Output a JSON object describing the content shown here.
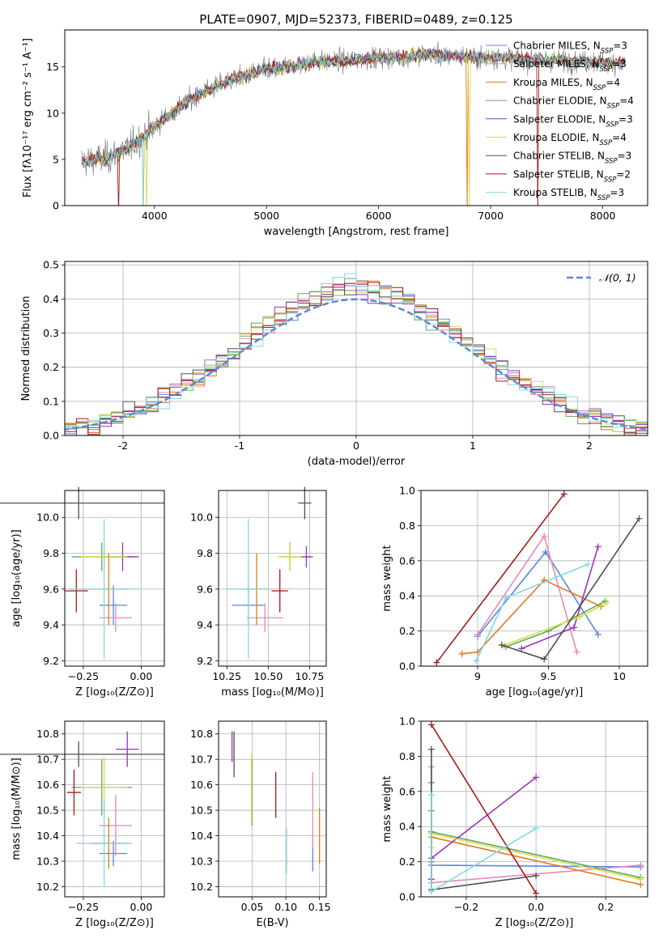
{
  "figure_title": "PLATE=0907, MJD=52373, FIBERID=0489, z=0.125",
  "colors": {
    "chabrier_miles": "#5a86e0",
    "salpeter_miles": "#e889b8",
    "kroupa_miles": "#e07a1f",
    "chabrier_elodie": "#5fa860",
    "salpeter_elodie": "#9a35b8",
    "kroupa_elodie": "#d5dd4a",
    "chabrier_stelib": "#505050",
    "salpeter_stelib": "#a81a1a",
    "kroupa_stelib": "#7edae0",
    "normal_curve": "#5a8ad8",
    "grid": "#b0b0b0",
    "data_spectrum": "#707070"
  },
  "chart_data": [
    {
      "type": "line",
      "id": "spectrum",
      "xlabel": "wavelength [Angstrom, rest frame]",
      "ylabel": "Flux [fλ10⁻¹⁷ erg cm⁻² s⁻¹ A⁻¹]",
      "xlim": [
        3200,
        8400
      ],
      "ylim": [
        0,
        19
      ],
      "xticks": [
        4000,
        5000,
        6000,
        7000,
        8000
      ],
      "yticks": [
        0,
        5,
        10,
        15
      ],
      "grid": false,
      "legend_placement": "right",
      "series": [
        {
          "name": "Chabrier MILES, N_SSP=3",
          "key": "chabrier_miles"
        },
        {
          "name": "Salpeter MILES, N_SSP=3",
          "key": "salpeter_miles"
        },
        {
          "name": "Kroupa MILES, N_SSP=4",
          "key": "kroupa_miles"
        },
        {
          "name": "Chabrier ELODIE, N_SSP=4",
          "key": "chabrier_elodie"
        },
        {
          "name": "Salpeter ELODIE, N_SSP=3",
          "key": "salpeter_elodie"
        },
        {
          "name": "Kroupa ELODIE, N_SSP=4",
          "key": "kroupa_elodie"
        },
        {
          "name": "Chabrier STELIB, N_SSP=3",
          "key": "chabrier_stelib"
        },
        {
          "name": "Salpeter STELIB, N_SSP=2",
          "key": "salpeter_stelib"
        },
        {
          "name": "Kroupa STELIB, N_SSP=3",
          "key": "kroupa_stelib"
        }
      ],
      "continuum": {
        "x": [
          3350,
          3600,
          3800,
          4000,
          4200,
          4400,
          4600,
          4800,
          5000,
          5200,
          5400,
          5600,
          5800,
          6000,
          6200,
          6400,
          6600,
          6800,
          7000,
          7200,
          7400,
          7600,
          7800,
          8000,
          8200
        ],
        "y": [
          4.8,
          5.2,
          6.5,
          8.5,
          10.5,
          12.0,
          13.2,
          14.0,
          14.8,
          15.0,
          15.6,
          15.6,
          15.8,
          16.0,
          16.0,
          16.4,
          16.2,
          16.1,
          16.0,
          15.9,
          15.8,
          15.7,
          15.6,
          15.5,
          15.4
        ]
      }
    },
    {
      "type": "line",
      "id": "residuals",
      "xlabel": "(data-model)/error",
      "ylabel": "Normed distribution",
      "xlim": [
        -2.5,
        2.5
      ],
      "ylim": [
        0,
        0.51
      ],
      "xticks": [
        -2,
        -1,
        0,
        1,
        2
      ],
      "yticks": [
        0.0,
        0.1,
        0.2,
        0.3,
        0.4,
        0.5
      ],
      "grid": true,
      "legend_placement": "upper right",
      "legend": [
        "𝒩(0, 1)"
      ],
      "normal_curve": {
        "mean": 0,
        "sigma": 1
      }
    },
    {
      "type": "scatter",
      "id": "age-vs-Z",
      "xlabel": "Z [log₁₀(Z/Z⊙)]",
      "ylabel": "age  [log₁₀(age/yr)]",
      "xlim": [
        -0.33,
        0.1
      ],
      "ylim": [
        9.17,
        10.15
      ],
      "xticks": [
        -0.25,
        0.0
      ],
      "xticklabels": [
        "−0.25",
        "0.00"
      ],
      "yticks": [
        9.2,
        9.4,
        9.6,
        9.8,
        10.0
      ],
      "grid": true,
      "points": [
        {
          "key": "chabrier_miles",
          "x": -0.12,
          "y": 9.51,
          "xerr": 0.06,
          "yerr": 0.11
        },
        {
          "key": "salpeter_miles",
          "x": -0.11,
          "y": 9.44,
          "xerr": 0.07,
          "yerr": 0.08
        },
        {
          "key": "kroupa_miles",
          "x": -0.14,
          "y": 9.6,
          "xerr": 0.08,
          "yerr": 0.2
        },
        {
          "key": "chabrier_elodie",
          "x": -0.17,
          "y": 9.78,
          "xerr": 0.13,
          "yerr": 0.08
        },
        {
          "key": "salpeter_elodie",
          "x": -0.08,
          "y": 9.78,
          "xerr": 0.07,
          "yerr": 0.08
        },
        {
          "key": "kroupa_elodie",
          "x": -0.16,
          "y": 9.78,
          "xerr": 0.1,
          "yerr": 0.08
        },
        {
          "key": "chabrier_stelib",
          "x": -0.27,
          "y": 10.08,
          "xerr": 0.37,
          "yerr": 0.09
        },
        {
          "key": "salpeter_stelib",
          "x": -0.28,
          "y": 9.59,
          "xerr": 0.05,
          "yerr": 0.12
        },
        {
          "key": "kroupa_stelib",
          "x": -0.16,
          "y": 9.6,
          "xerr": 0.15,
          "yerr": 0.39
        }
      ]
    },
    {
      "type": "scatter",
      "id": "age-vs-mass",
      "xlabel": "mass [log₁₀(M/M⊙)]",
      "ylabel": "",
      "xlim": [
        10.2,
        10.85
      ],
      "ylim": [
        9.17,
        10.15
      ],
      "xticks": [
        10.25,
        10.5,
        10.75
      ],
      "xticklabels": [
        "10.25",
        "10.50",
        "10.75"
      ],
      "yticks": [
        9.2,
        9.4,
        9.6,
        9.8,
        10.0
      ],
      "grid": true,
      "points": [
        {
          "key": "chabrier_miles",
          "x": 10.38,
          "y": 9.51,
          "xerr": 0.1,
          "yerr": 0.11
        },
        {
          "key": "salpeter_miles",
          "x": 10.48,
          "y": 9.44,
          "xerr": 0.11,
          "yerr": 0.08
        },
        {
          "key": "kroupa_miles",
          "x": 10.43,
          "y": 9.6,
          "xerr": 0.08,
          "yerr": 0.2
        },
        {
          "key": "chabrier_elodie",
          "x": 10.63,
          "y": 9.78,
          "xerr": 0.05,
          "yerr": 0.08
        },
        {
          "key": "salpeter_elodie",
          "x": 10.73,
          "y": 9.78,
          "xerr": 0.04,
          "yerr": 0.06
        },
        {
          "key": "kroupa_elodie",
          "x": 10.63,
          "y": 9.78,
          "xerr": 0.07,
          "yerr": 0.08
        },
        {
          "key": "chabrier_stelib",
          "x": 10.72,
          "y": 10.08,
          "xerr": 0.04,
          "yerr": 0.09
        },
        {
          "key": "salpeter_stelib",
          "x": 10.57,
          "y": 9.59,
          "xerr": 0.05,
          "yerr": 0.12
        },
        {
          "key": "kroupa_stelib",
          "x": 10.38,
          "y": 9.6,
          "xerr": 0.13,
          "yerr": 0.39
        }
      ]
    },
    {
      "type": "line",
      "id": "weight-vs-age",
      "xlabel": "age  [log₁₀(age/yr)]",
      "ylabel": "mass weight",
      "xlim": [
        8.6,
        10.2
      ],
      "ylim": [
        0,
        1
      ],
      "xticks": [
        9.0,
        9.5,
        10.0
      ],
      "yticks": [
        0.0,
        0.2,
        0.4,
        0.6,
        0.8,
        1.0
      ],
      "grid": true,
      "series": [
        {
          "key": "chabrier_miles",
          "x": [
            9.0,
            9.48,
            9.85
          ],
          "y": [
            0.17,
            0.65,
            0.18
          ]
        },
        {
          "key": "salpeter_miles",
          "x": [
            9.0,
            9.47,
            9.7
          ],
          "y": [
            0.18,
            0.74,
            0.08
          ]
        },
        {
          "key": "kroupa_miles",
          "x": [
            8.89,
            9.0,
            9.47,
            9.87
          ],
          "y": [
            0.07,
            0.08,
            0.49,
            0.34
          ]
        },
        {
          "key": "chabrier_elodie",
          "x": [
            9.2,
            9.5,
            9.9
          ],
          "y": [
            0.11,
            0.2,
            0.37
          ]
        },
        {
          "key": "salpeter_elodie",
          "x": [
            9.31,
            9.68,
            9.85
          ],
          "y": [
            0.1,
            0.22,
            0.68
          ]
        },
        {
          "key": "kroupa_elodie",
          "x": [
            9.19,
            9.72,
            9.91
          ],
          "y": [
            0.12,
            0.28,
            0.36
          ]
        },
        {
          "key": "chabrier_stelib",
          "x": [
            9.17,
            9.47,
            10.14
          ],
          "y": [
            0.12,
            0.04,
            0.84
          ]
        },
        {
          "key": "salpeter_stelib",
          "x": [
            8.71,
            9.61
          ],
          "y": [
            0.02,
            0.98
          ]
        },
        {
          "key": "kroupa_stelib",
          "x": [
            8.99,
            9.2,
            9.78
          ],
          "y": [
            0.03,
            0.39,
            0.58
          ]
        }
      ]
    },
    {
      "type": "scatter",
      "id": "mass-vs-Z",
      "xlabel": "Z [log₁₀(Z/Z⊙)]",
      "ylabel": "mass [log₁₀(M/M⊙)]",
      "xlim": [
        -0.33,
        0.1
      ],
      "ylim": [
        10.16,
        10.85
      ],
      "xticks": [
        -0.25,
        0.0
      ],
      "xticklabels": [
        "−0.25",
        "0.00"
      ],
      "yticks": [
        10.2,
        10.3,
        10.4,
        10.5,
        10.6,
        10.7,
        10.8
      ],
      "grid": true,
      "points": [
        {
          "key": "chabrier_miles",
          "x": -0.12,
          "y": 10.33,
          "xerr": 0.06,
          "yerr": 0.05
        },
        {
          "key": "salpeter_miles",
          "x": -0.11,
          "y": 10.44,
          "xerr": 0.07,
          "yerr": 0.12
        },
        {
          "key": "kroupa_miles",
          "x": -0.14,
          "y": 10.37,
          "xerr": 0.08,
          "yerr": 0.1
        },
        {
          "key": "chabrier_elodie",
          "x": -0.17,
          "y": 10.59,
          "xerr": 0.13,
          "yerr": 0.11
        },
        {
          "key": "salpeter_elodie",
          "x": -0.06,
          "y": 10.74,
          "xerr": 0.05,
          "yerr": 0.07
        },
        {
          "key": "kroupa_elodie",
          "x": -0.16,
          "y": 10.59,
          "xerr": 0.1,
          "yerr": 0.12
        },
        {
          "key": "chabrier_stelib",
          "x": -0.27,
          "y": 10.72,
          "xerr": 0.37,
          "yerr": 0.05
        },
        {
          "key": "salpeter_stelib",
          "x": -0.29,
          "y": 10.57,
          "xerr": 0.03,
          "yerr": 0.09
        },
        {
          "key": "kroupa_stelib",
          "x": -0.16,
          "y": 10.37,
          "xerr": 0.12,
          "yerr": 0.17
        }
      ]
    },
    {
      "type": "scatter",
      "id": "mass-vs-ebv",
      "xlabel": "E(B-V)",
      "ylabel": "",
      "xlim": [
        0.0,
        0.16
      ],
      "ylim": [
        10.16,
        10.85
      ],
      "xticks": [
        0.05,
        0.1,
        0.15
      ],
      "xticklabels": [
        "0.05",
        "0.10",
        "0.15"
      ],
      "yticks": [
        10.2,
        10.3,
        10.4,
        10.5,
        10.6,
        10.7,
        10.8
      ],
      "grid": true,
      "points": [
        {
          "key": "chabrier_miles",
          "x": 0.14,
          "y": 10.33,
          "xerr": 0.0,
          "yerr": 0.07
        },
        {
          "key": "salpeter_miles",
          "x": 0.14,
          "y": 10.5,
          "xerr": 0.0,
          "yerr": 0.15
        },
        {
          "key": "kroupa_miles",
          "x": 0.15,
          "y": 10.4,
          "xerr": 0.0,
          "yerr": 0.11
        },
        {
          "key": "chabrier_elodie",
          "x": 0.05,
          "y": 10.57,
          "xerr": 0.0,
          "yerr": 0.13
        },
        {
          "key": "salpeter_elodie",
          "x": 0.02,
          "y": 10.75,
          "xerr": 0.0,
          "yerr": 0.06
        },
        {
          "key": "kroupa_elodie",
          "x": 0.049,
          "y": 10.58,
          "xerr": 0.0,
          "yerr": 0.14
        },
        {
          "key": "chabrier_stelib",
          "x": 0.023,
          "y": 10.72,
          "xerr": 0.0,
          "yerr": 0.09
        },
        {
          "key": "salpeter_stelib",
          "x": 0.085,
          "y": 10.56,
          "xerr": 0.0,
          "yerr": 0.09
        },
        {
          "key": "kroupa_stelib",
          "x": 0.101,
          "y": 10.34,
          "xerr": 0.0,
          "yerr": 0.09
        }
      ]
    },
    {
      "type": "line",
      "id": "weight-vs-Z",
      "xlabel": "Z [log₁₀(Z/Z⊙)]",
      "ylabel": "mass weight",
      "xlim": [
        -0.33,
        0.32
      ],
      "ylim": [
        0,
        1
      ],
      "xticks": [
        -0.2,
        0.0,
        0.2
      ],
      "xticklabels": [
        "−0.2",
        "0.0",
        "0.2"
      ],
      "yticks": [
        0.0,
        0.2,
        0.4,
        0.6,
        0.8,
        1.0
      ],
      "grid": true,
      "series": [
        {
          "key": "chabrier_miles",
          "x": [
            -0.3,
            -0.3,
            0.3
          ],
          "y": [
            0.65,
            0.18,
            0.17
          ]
        },
        {
          "key": "salpeter_miles",
          "x": [
            -0.3,
            -0.3,
            0.3
          ],
          "y": [
            0.74,
            0.08,
            0.18
          ]
        },
        {
          "key": "kroupa_miles",
          "x": [
            -0.3,
            -0.3,
            0.3
          ],
          "y": [
            0.49,
            0.34,
            0.07
          ]
        },
        {
          "key": "chabrier_elodie",
          "x": [
            -0.3,
            -0.3,
            0.3
          ],
          "y": [
            0.2,
            0.37,
            0.11
          ]
        },
        {
          "key": "salpeter_elodie",
          "x": [
            -0.3,
            -0.3,
            0.0
          ],
          "y": [
            0.1,
            0.22,
            0.68
          ]
        },
        {
          "key": "kroupa_elodie",
          "x": [
            -0.3,
            -0.3,
            0.3
          ],
          "y": [
            0.28,
            0.36,
            0.1
          ]
        },
        {
          "key": "chabrier_stelib",
          "x": [
            -0.3,
            -0.3,
            0.0
          ],
          "y": [
            0.84,
            0.04,
            0.12
          ]
        },
        {
          "key": "salpeter_stelib",
          "x": [
            -0.3,
            0.0
          ],
          "y": [
            0.98,
            0.02
          ]
        },
        {
          "key": "kroupa_stelib",
          "x": [
            -0.3,
            -0.3,
            0.0
          ],
          "y": [
            0.58,
            0.03,
            0.39
          ]
        }
      ]
    }
  ]
}
